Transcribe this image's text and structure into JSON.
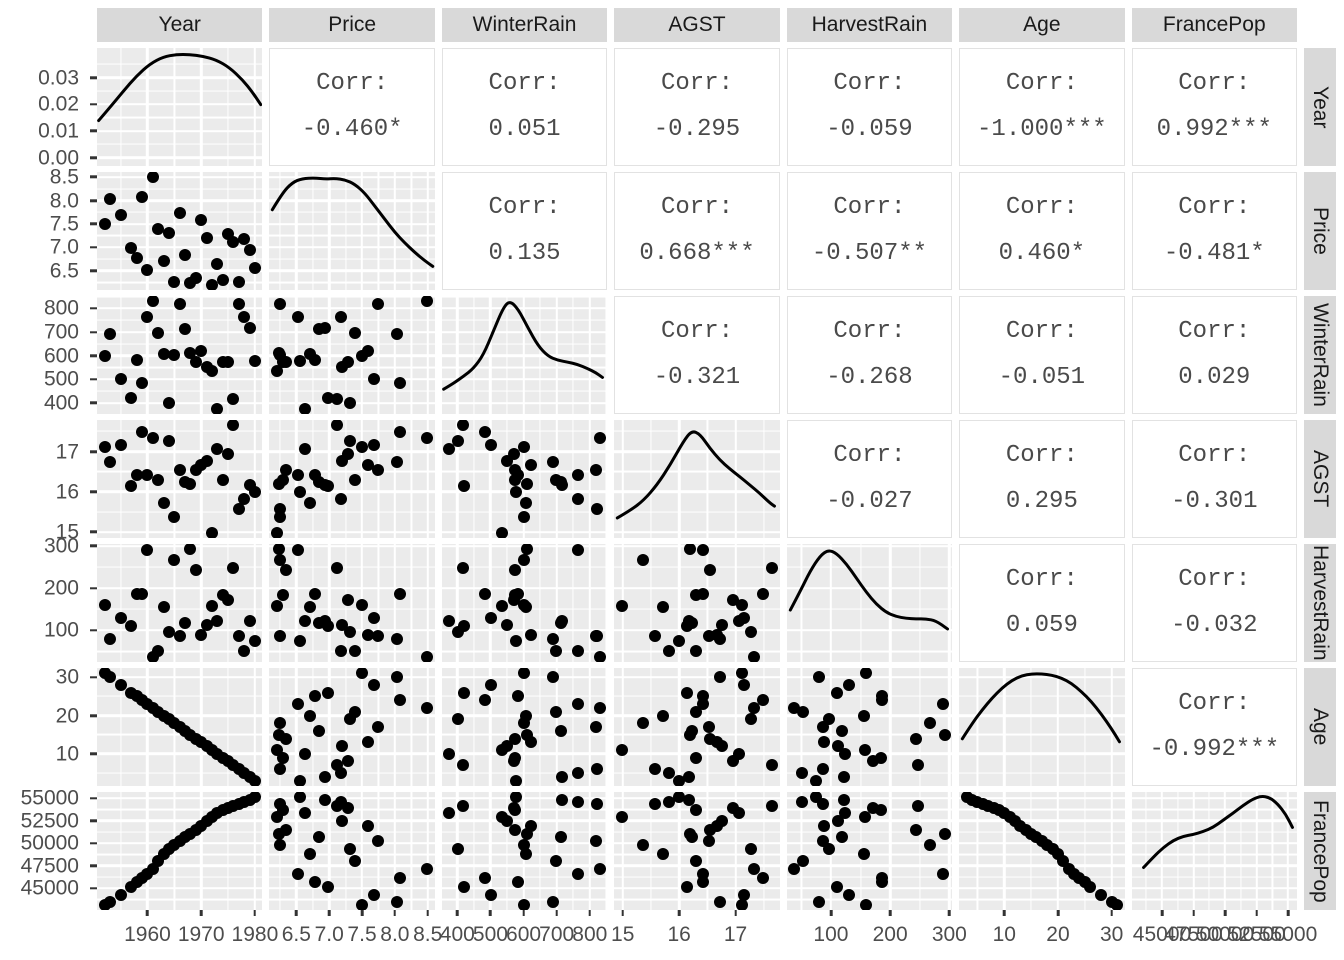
{
  "plot_type_label": "ggpairs scatterplot matrix",
  "chart_data": {
    "type": "scatter",
    "subtype": "scatterplot-matrix",
    "corr_label": "Corr:",
    "columns": [
      "Year",
      "Price",
      "WinterRain",
      "AGST",
      "HarvestRain",
      "Age",
      "FrancePop"
    ],
    "variables": [
      {
        "name": "Year",
        "min": 1950.6,
        "max": 1981.4,
        "ticks": {
          "labels": [
            "1960",
            "1970",
            "1980"
          ],
          "values": [
            1960,
            1970,
            1980
          ],
          "minor": [
            1955,
            1965,
            1975
          ]
        }
      },
      {
        "name": "Price",
        "min": 6.0905,
        "max": 8.6081,
        "ticks": {
          "labels": [
            "6.5",
            "7.0",
            "7.5",
            "8.0",
            "8.5"
          ],
          "values": [
            6.5,
            7.0,
            7.5,
            8.0,
            8.5
          ],
          "minor": [
            6.25,
            6.75,
            7.25,
            7.75,
            8.25
          ]
        }
      },
      {
        "name": "WinterRain",
        "min": 353.3,
        "max": 852.7,
        "ticks": {
          "labels": [
            "400",
            "500",
            "600",
            "700",
            "800"
          ],
          "values": [
            400,
            500,
            600,
            700,
            800
          ],
          "minor": [
            450,
            550,
            650,
            750,
            850
          ]
        }
      },
      {
        "name": "AGST",
        "min": 14.85,
        "max": 17.7833,
        "ticks": {
          "labels": [
            "15",
            "16",
            "17"
          ],
          "values": [
            15,
            16,
            17
          ],
          "minor": [
            15.5,
            16.5,
            17.5
          ]
        }
      },
      {
        "name": "HarvestRain",
        "min": 25.3,
        "max": 304.7,
        "ticks": {
          "labels": [
            "100",
            "200",
            "300"
          ],
          "values": [
            100,
            200,
            300
          ],
          "minor": [
            50,
            150,
            250
          ]
        }
      },
      {
        "name": "Age",
        "min": 1.6,
        "max": 32.4,
        "ticks": {
          "labels": [
            "10",
            "20",
            "30"
          ],
          "values": [
            10,
            20,
            30
          ],
          "minor": [
            5,
            15,
            25
          ]
        }
      },
      {
        "name": "FrancePop",
        "min": 42587,
        "max": 55707,
        "ticks": {
          "labels": [
            "45000",
            "47500",
            "50000",
            "52500",
            "55000"
          ],
          "values": [
            45000,
            47500,
            50000,
            52500,
            55000
          ],
          "minor": [
            43750,
            46250,
            48750,
            51250,
            53750
          ]
        }
      }
    ],
    "density_axis": {
      "labels": [
        "0.00",
        "0.01",
        "0.02",
        "0.03"
      ],
      "values": [
        0,
        0.01,
        0.02,
        0.03
      ],
      "minor": [
        0.005,
        0.015,
        0.025,
        0.035
      ],
      "min": -0.0032,
      "max": 0.0412
    },
    "correlations": {
      "Year|Price": "-0.460*",
      "Year|WinterRain": "0.051",
      "Year|AGST": "-0.295",
      "Year|HarvestRain": "-0.059",
      "Year|Age": "-1.000***",
      "Year|FrancePop": "0.992***",
      "Price|WinterRain": "0.135",
      "Price|AGST": "0.668***",
      "Price|HarvestRain": "-0.507**",
      "Price|Age": "0.460*",
      "Price|FrancePop": "-0.481*",
      "WinterRain|AGST": "-0.321",
      "WinterRain|HarvestRain": "-0.268",
      "WinterRain|Age": "-0.051",
      "WinterRain|FrancePop": "0.029",
      "AGST|HarvestRain": "-0.027",
      "AGST|Age": "0.295",
      "AGST|FrancePop": "-0.301",
      "HarvestRain|Age": "0.059",
      "HarvestRain|FrancePop": "-0.032",
      "Age|FrancePop": "-0.992***"
    },
    "observations": [
      [
        1952,
        7.495,
        600,
        17.1167,
        160,
        31,
        43184
      ],
      [
        1953,
        8.0393,
        690,
        16.7333,
        80,
        30,
        43495
      ],
      [
        1955,
        7.6858,
        502,
        17.15,
        130,
        28,
        44218
      ],
      [
        1957,
        6.9845,
        420,
        16.1333,
        110,
        26,
        45152
      ],
      [
        1958,
        6.7772,
        582,
        16.4167,
        187,
        25,
        45654
      ],
      [
        1959,
        8.0757,
        485,
        17.4833,
        187,
        24,
        46129
      ],
      [
        1960,
        6.5188,
        763,
        16.4167,
        290,
        23,
        46584
      ],
      [
        1961,
        8.4937,
        830,
        17.3333,
        38,
        22,
        47128
      ],
      [
        1962,
        7.388,
        697,
        16.3,
        52,
        21,
        48089
      ],
      [
        1963,
        6.7127,
        608,
        15.7167,
        155,
        20,
        48799
      ],
      [
        1964,
        7.3094,
        402,
        17.2667,
        96,
        19,
        49357
      ],
      [
        1965,
        6.2518,
        602,
        15.3667,
        267,
        18,
        49802
      ],
      [
        1966,
        7.7443,
        819,
        16.5333,
        86,
        17,
        50255
      ],
      [
        1967,
        6.8398,
        714,
        16.2333,
        118,
        16,
        50650
      ],
      [
        1968,
        6.2435,
        610,
        16.2,
        292,
        15,
        51034
      ],
      [
        1969,
        6.3459,
        575,
        16.55,
        244,
        14,
        51470
      ],
      [
        1970,
        7.5883,
        622,
        16.6667,
        89,
        13,
        51918
      ],
      [
        1971,
        7.1934,
        551,
        16.7667,
        112,
        12,
        52432
      ],
      [
        1972,
        6.2049,
        536,
        14.9833,
        158,
        11,
        52894
      ],
      [
        1973,
        6.6367,
        376,
        17.0667,
        123,
        10,
        53333
      ],
      [
        1974,
        6.2941,
        574,
        16.3,
        184,
        9,
        53690
      ],
      [
        1975,
        7.292,
        572,
        16.95,
        171,
        8,
        53955
      ],
      [
        1976,
        7.1211,
        418,
        17.65,
        247,
        7,
        54159
      ],
      [
        1977,
        6.2587,
        821,
        15.58,
        87,
        6,
        54378
      ],
      [
        1978,
        7.186,
        763,
        15.825,
        51,
        5,
        54602
      ],
      [
        1979,
        6.9344,
        717,
        16.1667,
        122,
        4,
        54836
      ],
      [
        1980,
        6.5598,
        578,
        16.0,
        74,
        3,
        55110
      ]
    ],
    "density_curves": {
      "Year": [
        [
          0.01,
          0.385
        ],
        [
          0.08,
          0.5
        ],
        [
          0.16,
          0.635
        ],
        [
          0.24,
          0.765
        ],
        [
          0.32,
          0.865
        ],
        [
          0.4,
          0.925
        ],
        [
          0.48,
          0.945
        ],
        [
          0.56,
          0.945
        ],
        [
          0.64,
          0.93
        ],
        [
          0.72,
          0.9
        ],
        [
          0.8,
          0.835
        ],
        [
          0.88,
          0.73
        ],
        [
          0.94,
          0.625
        ],
        [
          0.99,
          0.52
        ]
      ],
      "Price": [
        [
          0.02,
          0.68
        ],
        [
          0.08,
          0.82
        ],
        [
          0.14,
          0.91
        ],
        [
          0.2,
          0.945
        ],
        [
          0.28,
          0.95
        ],
        [
          0.34,
          0.94
        ],
        [
          0.4,
          0.945
        ],
        [
          0.46,
          0.935
        ],
        [
          0.52,
          0.895
        ],
        [
          0.58,
          0.82
        ],
        [
          0.64,
          0.71
        ],
        [
          0.7,
          0.6
        ],
        [
          0.76,
          0.49
        ],
        [
          0.82,
          0.4
        ],
        [
          0.88,
          0.32
        ],
        [
          0.94,
          0.25
        ],
        [
          0.99,
          0.2
        ]
      ],
      "WinterRain": [
        [
          0.01,
          0.21
        ],
        [
          0.07,
          0.26
        ],
        [
          0.13,
          0.32
        ],
        [
          0.19,
          0.385
        ],
        [
          0.25,
          0.5
        ],
        [
          0.31,
          0.7
        ],
        [
          0.37,
          0.9
        ],
        [
          0.41,
          0.96
        ],
        [
          0.46,
          0.89
        ],
        [
          0.52,
          0.73
        ],
        [
          0.58,
          0.58
        ],
        [
          0.64,
          0.49
        ],
        [
          0.7,
          0.455
        ],
        [
          0.76,
          0.44
        ],
        [
          0.82,
          0.42
        ],
        [
          0.88,
          0.385
        ],
        [
          0.93,
          0.35
        ],
        [
          0.97,
          0.31
        ]
      ],
      "AGST": [
        [
          0.02,
          0.17
        ],
        [
          0.1,
          0.235
        ],
        [
          0.18,
          0.32
        ],
        [
          0.26,
          0.45
        ],
        [
          0.34,
          0.62
        ],
        [
          0.42,
          0.82
        ],
        [
          0.47,
          0.91
        ],
        [
          0.52,
          0.88
        ],
        [
          0.58,
          0.76
        ],
        [
          0.64,
          0.66
        ],
        [
          0.7,
          0.585
        ],
        [
          0.76,
          0.52
        ],
        [
          0.82,
          0.45
        ],
        [
          0.88,
          0.38
        ],
        [
          0.94,
          0.3
        ],
        [
          0.97,
          0.27
        ]
      ],
      "HarvestRain": [
        [
          0.02,
          0.44
        ],
        [
          0.08,
          0.6
        ],
        [
          0.14,
          0.77
        ],
        [
          0.2,
          0.9
        ],
        [
          0.25,
          0.95
        ],
        [
          0.3,
          0.92
        ],
        [
          0.36,
          0.83
        ],
        [
          0.42,
          0.71
        ],
        [
          0.48,
          0.59
        ],
        [
          0.54,
          0.49
        ],
        [
          0.6,
          0.42
        ],
        [
          0.66,
          0.385
        ],
        [
          0.72,
          0.37
        ],
        [
          0.78,
          0.365
        ],
        [
          0.84,
          0.365
        ],
        [
          0.9,
          0.35
        ],
        [
          0.97,
          0.28
        ]
      ],
      "Age": [
        [
          0.02,
          0.4
        ],
        [
          0.08,
          0.53
        ],
        [
          0.14,
          0.645
        ],
        [
          0.2,
          0.745
        ],
        [
          0.26,
          0.83
        ],
        [
          0.32,
          0.895
        ],
        [
          0.38,
          0.935
        ],
        [
          0.44,
          0.95
        ],
        [
          0.5,
          0.95
        ],
        [
          0.56,
          0.94
        ],
        [
          0.62,
          0.915
        ],
        [
          0.68,
          0.87
        ],
        [
          0.74,
          0.8
        ],
        [
          0.8,
          0.715
        ],
        [
          0.86,
          0.61
        ],
        [
          0.92,
          0.49
        ],
        [
          0.97,
          0.375
        ]
      ],
      "FrancePop": [
        [
          0.07,
          0.36
        ],
        [
          0.13,
          0.45
        ],
        [
          0.19,
          0.53
        ],
        [
          0.25,
          0.59
        ],
        [
          0.31,
          0.625
        ],
        [
          0.37,
          0.64
        ],
        [
          0.43,
          0.665
        ],
        [
          0.49,
          0.7
        ],
        [
          0.55,
          0.76
        ],
        [
          0.61,
          0.82
        ],
        [
          0.67,
          0.885
        ],
        [
          0.73,
          0.94
        ],
        [
          0.78,
          0.965
        ],
        [
          0.83,
          0.955
        ],
        [
          0.88,
          0.9
        ],
        [
          0.93,
          0.81
        ],
        [
          0.97,
          0.7
        ]
      ]
    },
    "colors": {
      "panel_bg": "#EBEBEB",
      "strip_bg": "#D9D9D9",
      "gridline": "#FFFFFF",
      "point": "#000000",
      "density_line": "#000000",
      "axis_text": "#4D4D4D",
      "corr_text": "#4A4A4A",
      "corr_border": "#E2E2E2"
    },
    "legend": "none",
    "grid": "on"
  }
}
